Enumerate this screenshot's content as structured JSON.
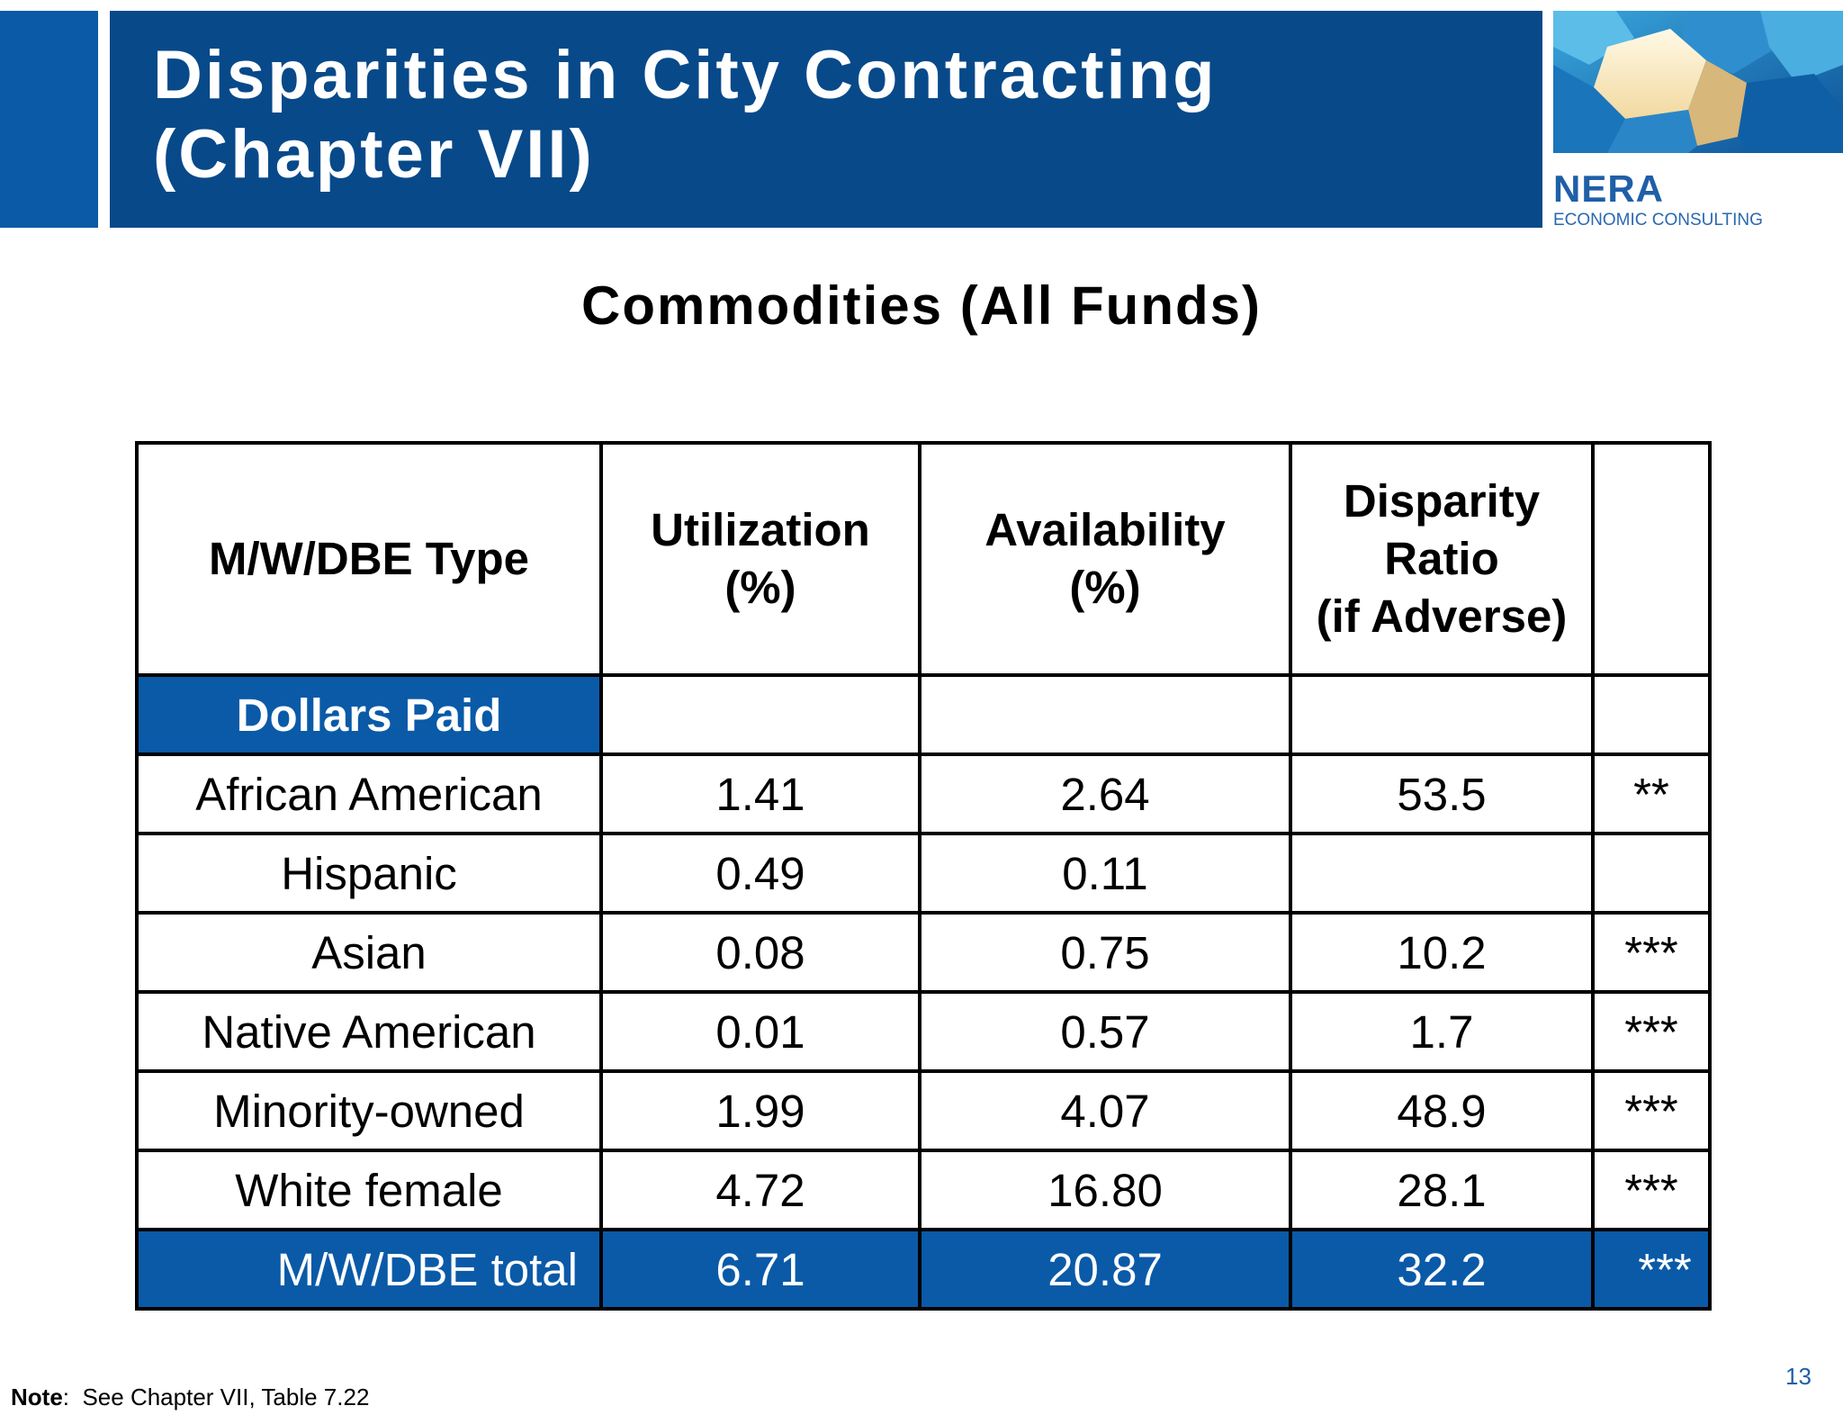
{
  "header": {
    "title_line1": "Disparities in City Contracting",
    "title_line2": "(Chapter VII)"
  },
  "logo": {
    "name": "NERA",
    "tagline": "ECONOMIC CONSULTING",
    "colors": {
      "brand": "#1f5fa8"
    }
  },
  "subtitle": "Commodities (All Funds)",
  "table": {
    "headers": {
      "type": "M/W/DBE Type",
      "utilization_line1": "Utilization",
      "utilization_line2": "(%)",
      "availability_line1": "Availability",
      "availability_line2": "(%)",
      "disparity_line1": "Disparity",
      "disparity_line2": "Ratio",
      "disparity_line3": "(if Adverse)",
      "significance": ""
    },
    "section_label": "Dollars Paid",
    "rows": [
      {
        "type": "African American",
        "utilization": "1.41",
        "availability": "2.64",
        "disparity": "53.5",
        "sig": "**"
      },
      {
        "type": "Hispanic",
        "utilization": "0.49",
        "availability": "0.11",
        "disparity": "",
        "sig": ""
      },
      {
        "type": "Asian",
        "utilization": "0.08",
        "availability": "0.75",
        "disparity": "10.2",
        "sig": "***"
      },
      {
        "type": "Native American",
        "utilization": "0.01",
        "availability": "0.57",
        "disparity": "1.7",
        "sig": "***"
      },
      {
        "type": "Minority-owned",
        "utilization": "1.99",
        "availability": "4.07",
        "disparity": "48.9",
        "sig": "***"
      },
      {
        "type": "White female",
        "utilization": "4.72",
        "availability": "16.80",
        "disparity": "28.1",
        "sig": "***"
      }
    ],
    "total": {
      "type": "M/W/DBE total",
      "utilization": "6.71",
      "availability": "20.87",
      "disparity": "32.2",
      "sig": "***"
    }
  },
  "note": {
    "label": "Note",
    "text": "See Chapter VII, Table 7.22"
  },
  "page_number": "13",
  "colors": {
    "header_blue": "#08498a",
    "accent_blue": "#0a5aa8"
  }
}
